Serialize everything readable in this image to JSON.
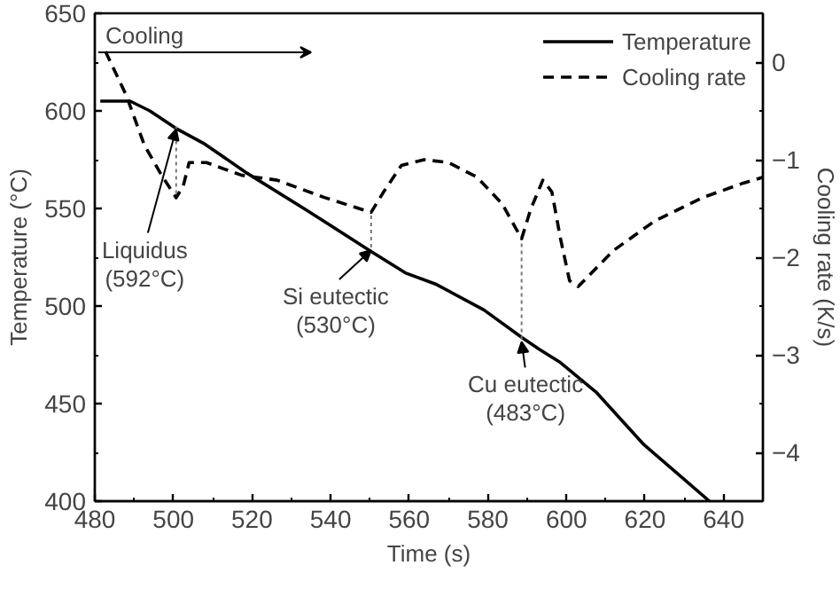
{
  "chart_data": {
    "type": "line",
    "xlabel": "Time (s)",
    "ylabel": "Temperature (°C)",
    "y2label": "Cooling rate (K/s)",
    "xlim": [
      480,
      650
    ],
    "xticks": [
      480,
      500,
      520,
      540,
      560,
      580,
      600,
      620,
      640
    ],
    "ylim": [
      400,
      650
    ],
    "yticks": [
      400,
      450,
      500,
      550,
      600,
      650
    ],
    "y2lim": [
      -4.5,
      0.5
    ],
    "y2ticks": [
      -4,
      -3,
      -2,
      -1,
      0
    ],
    "legend": "top right",
    "grid": false,
    "series": [
      {
        "name": "Temperature",
        "color": "#000000",
        "line_style": "solid",
        "x": [
          481.4,
          489,
          494,
          500.7,
          508,
          518.8,
          534,
          550.3,
          559,
          567,
          579,
          588.6,
          593,
          598.5,
          607.5,
          619.7,
          636.4
        ],
        "values": [
          605,
          605,
          600,
          591,
          583,
          568,
          549,
          528,
          517,
          511,
          498,
          484,
          478,
          471,
          456,
          429,
          400
        ]
      },
      {
        "color": "#777777",
        "line_style": "dotted",
        "x": [
          500.7,
          500.7
        ],
        "values": [
          592,
          556
        ]
      },
      {
        "color": "#777777",
        "line_style": "dotted",
        "x": [
          550.3,
          550.3
        ],
        "values": [
          530,
          548
        ]
      },
      {
        "color": "#777777",
        "line_style": "dotted",
        "x": [
          588.6,
          588.6
        ],
        "values": [
          483,
          534
        ]
      },
      {
        "name": "Cooling rate",
        "color": "#000000",
        "line_style": "dashed",
        "axis": "y2",
        "x": [
          482.7,
          488,
          492.6,
          497,
          500.7,
          502.5,
          504,
          508.4,
          517.4,
          526.4,
          538.6,
          550.3,
          553.5,
          558,
          563.8,
          570,
          577.3,
          583.6,
          588.6,
          590.9,
          594,
          596.3,
          598.5,
          600.8,
          603,
          612,
          622.4,
          634.6,
          645,
          650
        ],
        "values": [
          0.11,
          -0.34,
          -0.85,
          -1.16,
          -1.39,
          -1.27,
          -1.03,
          -1.03,
          -1.16,
          -1.21,
          -1.39,
          -1.54,
          -1.33,
          -1.06,
          -1.0,
          -1.03,
          -1.18,
          -1.45,
          -1.81,
          -1.51,
          -1.21,
          -1.33,
          -1.81,
          -2.24,
          -2.3,
          -1.93,
          -1.63,
          -1.39,
          -1.24,
          -1.18
        ]
      }
    ],
    "annotations": [
      "Cooling",
      {
        "text": "Liquidus (592°C)",
        "x": 500.7,
        "y": 592
      },
      {
        "text": "Si eutectic (530°C)",
        "x": 550.3,
        "y": 530
      },
      {
        "text": "Cu eutectic (483°C)",
        "x": 588.6,
        "y": 483
      }
    ]
  }
}
